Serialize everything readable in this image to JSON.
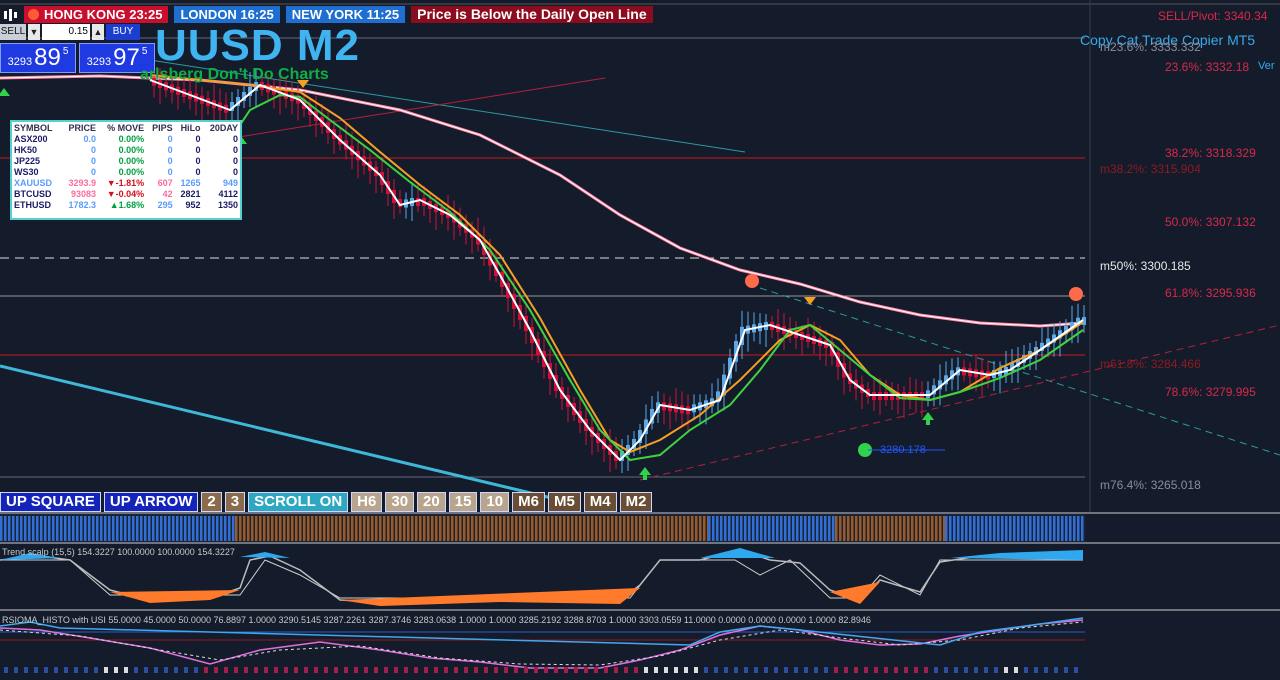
{
  "topbar": {
    "hk_label": "HONG KONG 23:25",
    "london_label": "LONDON  16:25",
    "ny_label": "NEW YORK  11:25",
    "alert": "Price is Below the Daily Open Line"
  },
  "trade_panel": {
    "sell_label": "SELL",
    "buy_label": "BUY",
    "lot": "0.15",
    "bid_prefix": "3293",
    "bid_big": "89",
    "bid_sup": "5",
    "ask_prefix": "3293",
    "ask_big": "97",
    "ask_sup": "5"
  },
  "title": "UUSD M2",
  "subtitle": "arlsberg Don't Do Charts",
  "copycat": "Copy Cat Trade Copier MT5",
  "ver": "Ver",
  "sellpivot": "SELL/Pivot: 3340.34",
  "symbols": {
    "headers": [
      "SYMBOL",
      "PRICE",
      "% MOVE",
      "PIPS",
      "HiLo",
      "20DAY"
    ],
    "rows": [
      {
        "symbol": "ASX200",
        "price": "0.0",
        "move": "0.00%",
        "pips": "0",
        "hilo": "0",
        "day20": "0"
      },
      {
        "symbol": "HK50",
        "price": "0",
        "move": "0.00%",
        "pips": "0",
        "hilo": "0",
        "day20": "0"
      },
      {
        "symbol": "JP225",
        "price": "0",
        "move": "0.00%",
        "pips": "0",
        "hilo": "0",
        "day20": "0"
      },
      {
        "symbol": "WS30",
        "price": "0",
        "move": "0.00%",
        "pips": "0",
        "hilo": "0",
        "day20": "0"
      },
      {
        "symbol": "XAUUSD",
        "price": "3293.9",
        "move": "▼-1.81%",
        "pips": "607",
        "hilo": "1265",
        "day20": "949"
      },
      {
        "symbol": "BTCUSD",
        "price": "93083",
        "move": "▼-0.04%",
        "pips": "42",
        "hilo": "2821",
        "day20": "4112"
      },
      {
        "symbol": "ETHUSD",
        "price": "1782.3",
        "move": "▲1.68%",
        "pips": "295",
        "hilo": "952",
        "day20": "1350"
      }
    ]
  },
  "levels": {
    "l1": "m23.6%: 3333.332",
    "l2": "23.6%: 3332.18",
    "l3": "38.2%: 3318.329",
    "l4": "m38.2%: 3315.904",
    "l5": "50.0%: 3307.132",
    "l6": "m50%: 3300.185",
    "l7": "61.8%: 3295.936",
    "l8": "m61.8%: 3284.466",
    "l9": "78.6%: 3279.995",
    "l10": "m76.4%: 3265.018",
    "low_label": "3280.178"
  },
  "buttons": [
    "UP SQUARE",
    "UP ARROW",
    "2",
    "3",
    "SCROLL ON",
    "H6",
    "30",
    "20",
    "15",
    "10",
    "M6",
    "M5",
    "M4",
    "M2"
  ],
  "indicator1": "Trend scalp (15,5) 154.3227 100.0000 100.0000 154.3227",
  "indicator2": "RSIOMA_HISTO with USI 55.0000 45.0000 50.0000 76.8897 1.0000 3290.5145 3287.2261 3287.3746 3283.0638 1.0000 1.0000 3285.2192 3288.8703 1.0000 3303.0559 11.0000 0.0000 0.0000 0.0000 1.0000 82.8946",
  "colors": {
    "bull": "#5aa8e8",
    "bear": "#d0103a",
    "ma_slow": "#ff7a9a",
    "ma_orange": "#f5a023",
    "ma_green": "#3fd23f"
  }
}
